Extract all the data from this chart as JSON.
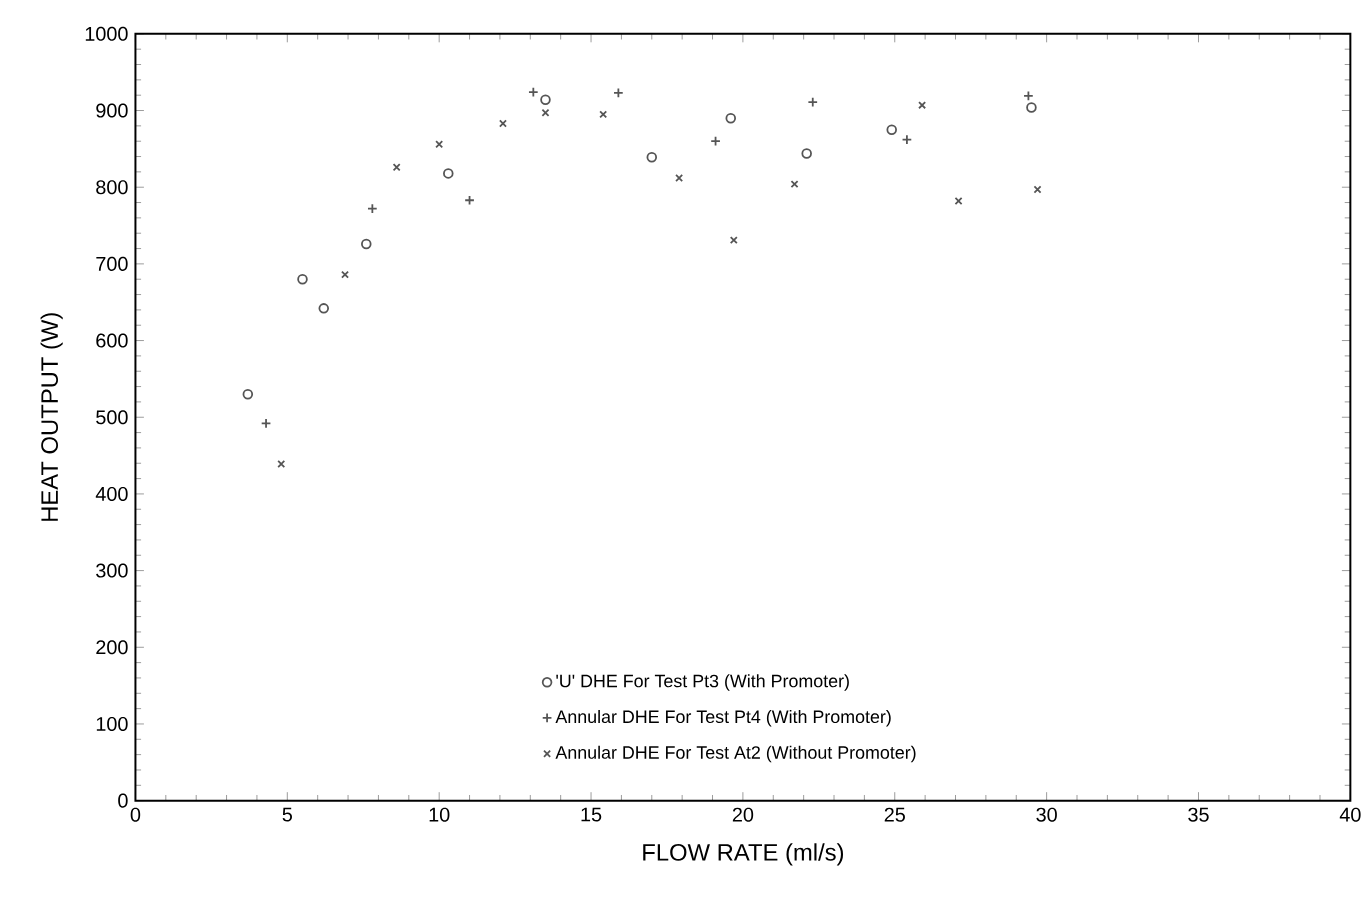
{
  "chart_data": {
    "type": "scatter",
    "xlabel": "FLOW RATE    (ml/s)",
    "ylabel": "HEAT OUTPUT    (W)",
    "xlim": [
      0,
      40
    ],
    "ylim": [
      0,
      1000
    ],
    "xticks": [
      0,
      5,
      10,
      15,
      20,
      25,
      30,
      35,
      40
    ],
    "yticks": [
      0,
      100,
      200,
      300,
      400,
      500,
      600,
      700,
      800,
      900,
      1000
    ],
    "legend": "bottom",
    "grid": false,
    "series": [
      {
        "name": "'U' DHE For Test Pt3 (With Promoter)",
        "color": "#555555",
        "marker": "circle",
        "x": [
          3.7,
          5.5,
          6.2,
          7.6,
          10.3,
          13.5,
          17.0,
          19.6,
          22.1,
          24.9,
          29.5
        ],
        "values": [
          530,
          680,
          642,
          726,
          818,
          914,
          839,
          890,
          844,
          875,
          904
        ]
      },
      {
        "name": "Annular DHE For Test Pt4 (With Promoter)",
        "color": "#555555",
        "marker": "plus",
        "x": [
          4.3,
          7.8,
          11.0,
          13.1,
          15.9,
          19.1,
          22.3,
          25.4,
          29.4
        ],
        "values": [
          492,
          772,
          783,
          924,
          923,
          860,
          911,
          862,
          919
        ]
      },
      {
        "name": "Annular DHE For Test At2 (Without Promoter)",
        "color": "#555555",
        "marker": "cross",
        "x": [
          4.8,
          6.9,
          8.6,
          10.0,
          12.1,
          13.5,
          15.4,
          17.9,
          19.7,
          21.7,
          25.9,
          27.1,
          29.7
        ],
        "values": [
          439,
          686,
          826,
          856,
          883,
          897,
          895,
          812,
          731,
          804,
          907,
          782,
          797
        ]
      }
    ]
  }
}
